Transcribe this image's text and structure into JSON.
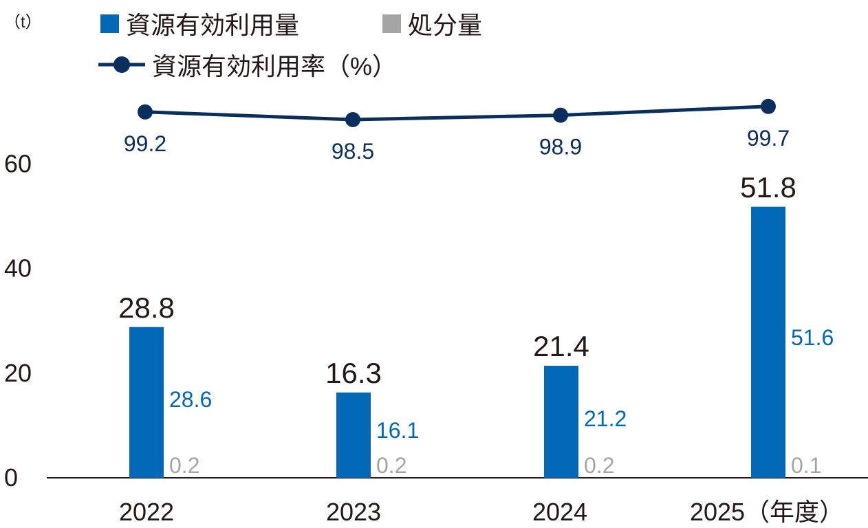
{
  "chart_data": {
    "type": "bar",
    "unit_label": "（t）",
    "categories": [
      "2022",
      "2023",
      "2024",
      "2025（年度）"
    ],
    "total_values": [
      28.8,
      16.3,
      21.4,
      51.8
    ],
    "series": [
      {
        "name": "資源有効利用量",
        "values": [
          28.6,
          16.1,
          21.2,
          51.6
        ],
        "color": "#0068b7"
      },
      {
        "name": "処分量",
        "values": [
          0.2,
          0.2,
          0.2,
          0.1
        ],
        "color": "#a5a5a5"
      },
      {
        "name": "資源有効利用率（%）",
        "values": [
          99.2,
          98.5,
          98.9,
          99.7
        ],
        "color": "#0a2f5e",
        "type": "line"
      }
    ],
    "y_axis": {
      "ticks": [
        0,
        20,
        40,
        60
      ],
      "range": [
        0,
        60
      ]
    },
    "legend_position": "top-left"
  }
}
